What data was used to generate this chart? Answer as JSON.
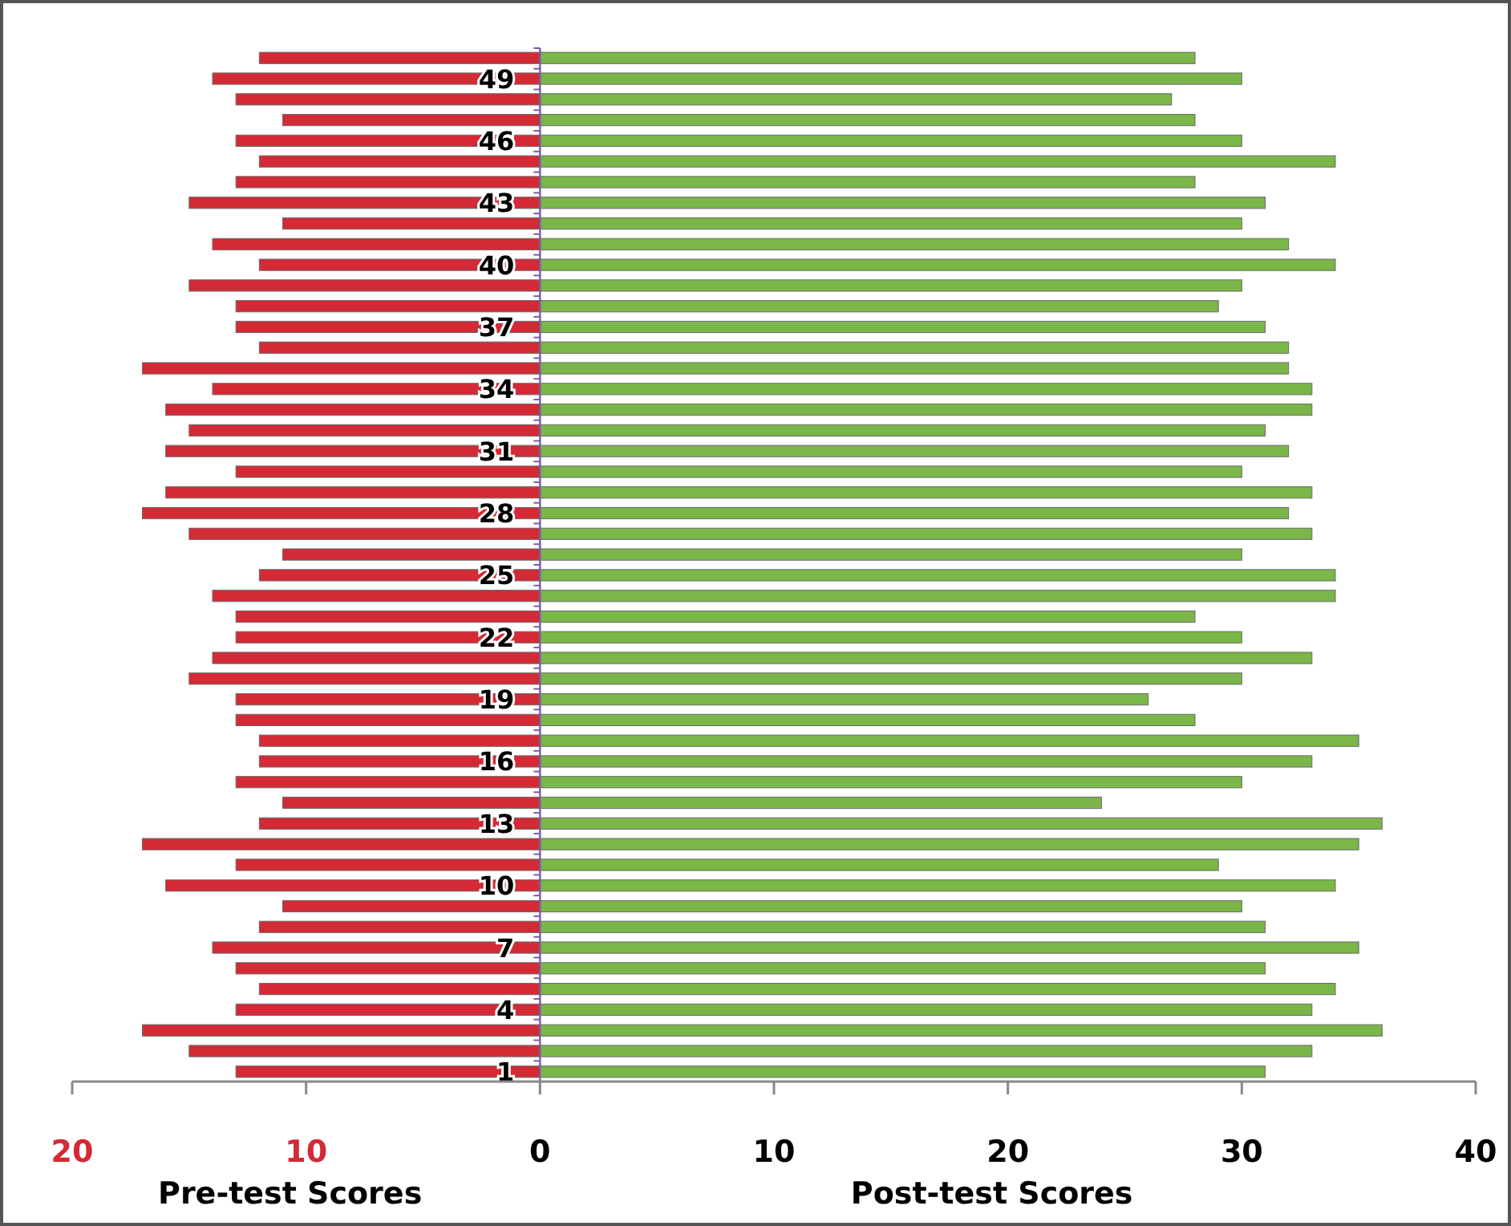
{
  "chart_data": {
    "type": "bar",
    "orientation": "horizontal",
    "categories": [
      null,
      "49",
      null,
      null,
      "46",
      null,
      null,
      "43",
      null,
      null,
      "40",
      null,
      null,
      "37",
      null,
      null,
      "34",
      null,
      null,
      "31",
      null,
      null,
      "28",
      null,
      null,
      "25",
      null,
      null,
      "22",
      null,
      null,
      "19",
      null,
      null,
      "16",
      null,
      null,
      "13",
      null,
      null,
      "10",
      null,
      null,
      "7",
      null,
      null,
      "4",
      null,
      null,
      "1"
    ],
    "series": [
      {
        "color": "#d32a35",
        "values": [
          -12,
          -14,
          -13,
          -11,
          -13,
          -12,
          -13,
          -15,
          -11,
          -14,
          -12,
          -15,
          -13,
          -13,
          -12,
          -17,
          -14,
          -16,
          -15,
          -16,
          -13,
          -16,
          -17,
          -15,
          -11,
          -12,
          -14,
          -13,
          -13,
          -14,
          -15,
          -13,
          -13,
          -12,
          -12,
          -13,
          -11,
          -12,
          -17,
          -13,
          -16,
          -11,
          -12,
          -14,
          -13,
          -12,
          -13,
          -17,
          -15,
          -13
        ]
      },
      {
        "color": "#7ab648",
        "values": [
          28,
          30,
          27,
          28,
          30,
          34,
          28,
          31,
          30,
          32,
          34,
          30,
          29,
          31,
          32,
          32,
          33,
          33,
          31,
          32,
          30,
          33,
          32,
          33,
          30,
          34,
          34,
          28,
          30,
          33,
          30,
          26,
          28,
          35,
          33,
          30,
          24,
          36,
          35,
          29,
          34,
          30,
          31,
          35,
          31,
          34,
          33,
          36,
          33,
          31
        ]
      }
    ],
    "xlim": [
      -20,
      40
    ],
    "xticks": [
      {
        "value": -20,
        "label": "20"
      },
      {
        "value": -10,
        "label": "10"
      },
      0,
      10,
      20,
      30,
      40
    ],
    "annotations": [
      "Pre-test Scores",
      "Post-test Scores"
    ],
    "stacked": true,
    "grid": false
  }
}
